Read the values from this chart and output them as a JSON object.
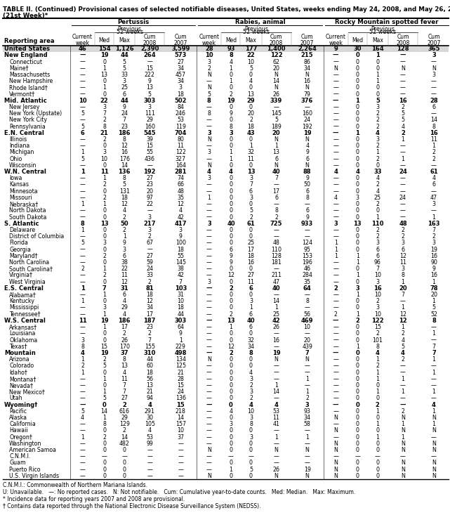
{
  "title_line1": "TABLE II. (Continued) Provisional cases of selected notifiable diseases, United States, weeks ending May 24, 2008, and May 26, 2007",
  "title_line2": "(21st Week)*",
  "rows": [
    [
      "United States",
      "46",
      "154",
      "1,126",
      "2,390",
      "3,599",
      "28",
      "93",
      "177",
      "1,400",
      "2,264",
      "9",
      "30",
      "164",
      "128",
      "365"
    ],
    [
      "New England",
      "—",
      "19",
      "44",
      "264",
      "573",
      "10",
      "8",
      "22",
      "122",
      "215",
      "—",
      "0",
      "1",
      "—",
      "3"
    ],
    [
      "Connecticut",
      "—",
      "0",
      "5",
      "—",
      "27",
      "3",
      "4",
      "10",
      "62",
      "86",
      "—",
      "0",
      "0",
      "—",
      "—"
    ],
    [
      "Maine†",
      "—",
      "1",
      "5",
      "15",
      "34",
      "2",
      "1",
      "5",
      "20",
      "34",
      "N",
      "0",
      "0",
      "N",
      "N"
    ],
    [
      "Massachusetts",
      "—",
      "13",
      "33",
      "222",
      "457",
      "N",
      "0",
      "0",
      "N",
      "N",
      "—",
      "0",
      "1",
      "—",
      "3"
    ],
    [
      "New Hampshire",
      "—",
      "0",
      "3",
      "9",
      "34",
      "—",
      "1",
      "4",
      "14",
      "16",
      "—",
      "0",
      "1",
      "—",
      "—"
    ],
    [
      "Rhode Island†",
      "—",
      "1",
      "25",
      "13",
      "3",
      "N",
      "0",
      "0",
      "N",
      "N",
      "—",
      "0",
      "0",
      "—",
      "—"
    ],
    [
      "Vermont†",
      "—",
      "0",
      "6",
      "5",
      "18",
      "5",
      "2",
      "13",
      "26",
      "79",
      "—",
      "0",
      "0",
      "—",
      "—"
    ],
    [
      "Mid. Atlantic",
      "10",
      "22",
      "44",
      "303",
      "502",
      "8",
      "19",
      "29",
      "339",
      "376",
      "—",
      "1",
      "5",
      "16",
      "28"
    ],
    [
      "New Jersey",
      "—",
      "3",
      "9",
      "3",
      "84",
      "—",
      "0",
      "0",
      "—",
      "—",
      "—",
      "0",
      "3",
      "2",
      "6"
    ],
    [
      "New York (Upstate)",
      "5",
      "7",
      "24",
      "111",
      "246",
      "8",
      "9",
      "20",
      "145",
      "160",
      "—",
      "0",
      "2",
      "5",
      "—"
    ],
    [
      "New York City",
      "—",
      "2",
      "7",
      "29",
      "53",
      "—",
      "0",
      "2",
      "5",
      "24",
      "—",
      "0",
      "2",
      "5",
      "14"
    ],
    [
      "Pennsylvania",
      "5",
      "8",
      "23",
      "160",
      "119",
      "—",
      "8",
      "18",
      "189",
      "192",
      "—",
      "0",
      "2",
      "4",
      "8"
    ],
    [
      "E.N. Central",
      "6",
      "21",
      "186",
      "545",
      "704",
      "3",
      "3",
      "43",
      "20",
      "19",
      "—",
      "1",
      "4",
      "2",
      "16"
    ],
    [
      "Illinois",
      "—",
      "2",
      "8",
      "39",
      "80",
      "N",
      "0",
      "0",
      "N",
      "N",
      "—",
      "0",
      "3",
      "1",
      "11"
    ],
    [
      "Indiana",
      "—",
      "0",
      "12",
      "15",
      "11",
      "—",
      "0",
      "1",
      "1",
      "4",
      "—",
      "0",
      "2",
      "—",
      "1"
    ],
    [
      "Michigan",
      "1",
      "3",
      "16",
      "55",
      "122",
      "3",
      "1",
      "32",
      "13",
      "9",
      "—",
      "0",
      "1",
      "—",
      "2"
    ],
    [
      "Ohio",
      "5",
      "10",
      "176",
      "436",
      "327",
      "—",
      "1",
      "11",
      "6",
      "6",
      "—",
      "0",
      "2",
      "1",
      "2"
    ],
    [
      "Wisconsin",
      "—",
      "0",
      "14",
      "—",
      "164",
      "N",
      "0",
      "0",
      "N",
      "N",
      "—",
      "0",
      "0",
      "—",
      "—"
    ],
    [
      "W.N. Central",
      "1",
      "11",
      "136",
      "192",
      "281",
      "4",
      "4",
      "13",
      "40",
      "88",
      "4",
      "4",
      "33",
      "24",
      "61"
    ],
    [
      "Iowa",
      "—",
      "1",
      "8",
      "27",
      "74",
      "3",
      "0",
      "3",
      "7",
      "9",
      "—",
      "0",
      "4",
      "—",
      "4"
    ],
    [
      "Kansas",
      "—",
      "2",
      "5",
      "23",
      "66",
      "—",
      "0",
      "7",
      "—",
      "50",
      "—",
      "0",
      "2",
      "—",
      "6"
    ],
    [
      "Minnesota",
      "—",
      "0",
      "131",
      "20",
      "48",
      "—",
      "0",
      "6",
      "17",
      "6",
      "—",
      "0",
      "4",
      "—",
      "—"
    ],
    [
      "Missouri",
      "—",
      "2",
      "18",
      "97",
      "35",
      "1",
      "0",
      "3",
      "6",
      "8",
      "4",
      "3",
      "25",
      "24",
      "47"
    ],
    [
      "Nebraska†",
      "1",
      "1",
      "12",
      "22",
      "12",
      "—",
      "0",
      "0",
      "—",
      "—",
      "—",
      "0",
      "2",
      "—",
      "3"
    ],
    [
      "North Dakota",
      "—",
      "0",
      "4",
      "—",
      "4",
      "—",
      "0",
      "5",
      "8",
      "6",
      "—",
      "0",
      "0",
      "—",
      "—"
    ],
    [
      "South Dakota",
      "—",
      "0",
      "2",
      "3",
      "42",
      "—",
      "0",
      "2",
      "2",
      "9",
      "—",
      "0",
      "1",
      "—",
      "1"
    ],
    [
      "S. Atlantic",
      "8",
      "13",
      "50",
      "217",
      "417",
      "3",
      "40",
      "61",
      "725",
      "933",
      "3",
      "13",
      "110",
      "48",
      "163"
    ],
    [
      "Delaware",
      "1",
      "0",
      "2",
      "3",
      "3",
      "—",
      "0",
      "0",
      "—",
      "—",
      "—",
      "0",
      "2",
      "2",
      "7"
    ],
    [
      "District of Columbia",
      "—",
      "0",
      "1",
      "2",
      "9",
      "—",
      "0",
      "0",
      "—",
      "—",
      "—",
      "0",
      "2",
      "2",
      "2"
    ],
    [
      "Florida",
      "5",
      "3",
      "9",
      "67",
      "100",
      "—",
      "0",
      "25",
      "48",
      "124",
      "1",
      "0",
      "3",
      "3",
      "3"
    ],
    [
      "Georgia",
      "—",
      "0",
      "3",
      "—",
      "18",
      "—",
      "6",
      "17",
      "110",
      "95",
      "1",
      "0",
      "6",
      "6",
      "19"
    ],
    [
      "Maryland†",
      "—",
      "2",
      "6",
      "27",
      "55",
      "—",
      "9",
      "18",
      "128",
      "153",
      "1",
      "1",
      "6",
      "12",
      "16"
    ],
    [
      "North Carolina",
      "—",
      "0",
      "38",
      "59",
      "145",
      "—",
      "9",
      "16",
      "181",
      "196",
      "—",
      "1",
      "96",
      "11",
      "90"
    ],
    [
      "South Carolina†",
      "2",
      "1",
      "22",
      "24",
      "38",
      "—",
      "0",
      "0",
      "—",
      "46",
      "—",
      "0",
      "7",
      "3",
      "9"
    ],
    [
      "Virginia†",
      "—",
      "2",
      "11",
      "33",
      "42",
      "—",
      "12",
      "27",
      "211",
      "284",
      "—",
      "1",
      "10",
      "8",
      "16"
    ],
    [
      "West Virginia",
      "—",
      "0",
      "12",
      "2",
      "7",
      "3",
      "0",
      "11",
      "47",
      "35",
      "—",
      "0",
      "3",
      "1",
      "1"
    ],
    [
      "E.S. Central",
      "1",
      "7",
      "31",
      "81",
      "103",
      "—",
      "2",
      "6",
      "40",
      "64",
      "2",
      "3",
      "16",
      "20",
      "78"
    ],
    [
      "Alabama†",
      "—",
      "1",
      "6",
      "18",
      "31",
      "—",
      "0",
      "0",
      "—",
      "—",
      "—",
      "1",
      "10",
      "7",
      "20"
    ],
    [
      "Kentucky",
      "1",
      "0",
      "4",
      "12",
      "10",
      "—",
      "0",
      "3",
      "14",
      "8",
      "—",
      "0",
      "2",
      "—",
      "1"
    ],
    [
      "Mississippi",
      "—",
      "3",
      "29",
      "34",
      "18",
      "—",
      "0",
      "1",
      "1",
      "—",
      "—",
      "0",
      "3",
      "1",
      "5"
    ],
    [
      "Tennessee†",
      "—",
      "1",
      "4",
      "17",
      "44",
      "—",
      "2",
      "6",
      "25",
      "56",
      "2",
      "1",
      "10",
      "12",
      "52"
    ],
    [
      "W.S. Central",
      "11",
      "19",
      "186",
      "187",
      "303",
      "—",
      "13",
      "40",
      "42",
      "469",
      "—",
      "2",
      "122",
      "12",
      "8"
    ],
    [
      "Arkansas†",
      "—",
      "1",
      "17",
      "23",
      "64",
      "—",
      "1",
      "6",
      "26",
      "10",
      "—",
      "0",
      "15",
      "1",
      "—"
    ],
    [
      "Louisiana",
      "—",
      "0",
      "2",
      "2",
      "9",
      "—",
      "0",
      "0",
      "—",
      "—",
      "—",
      "0",
      "2",
      "2",
      "1"
    ],
    [
      "Oklahoma",
      "3",
      "0",
      "26",
      "7",
      "1",
      "—",
      "0",
      "32",
      "16",
      "20",
      "—",
      "0",
      "101",
      "4",
      "—"
    ],
    [
      "Texas†",
      "8",
      "15",
      "170",
      "155",
      "229",
      "—",
      "12",
      "34",
      "—",
      "439",
      "—",
      "1",
      "8",
      "5",
      "7"
    ],
    [
      "Mountain",
      "4",
      "19",
      "37",
      "310",
      "498",
      "—",
      "2",
      "8",
      "19",
      "7",
      "—",
      "0",
      "4",
      "4",
      "7"
    ],
    [
      "Arizona",
      "1",
      "2",
      "8",
      "44",
      "134",
      "N",
      "0",
      "0",
      "N",
      "N",
      "—",
      "0",
      "1",
      "2",
      "1"
    ],
    [
      "Colorado",
      "2",
      "5",
      "13",
      "60",
      "125",
      "—",
      "0",
      "0",
      "—",
      "—",
      "—",
      "0",
      "2",
      "—",
      "—"
    ],
    [
      "Idaho†",
      "1",
      "0",
      "4",
      "18",
      "21",
      "—",
      "0",
      "4",
      "—",
      "—",
      "—",
      "0",
      "1",
      "—",
      "1"
    ],
    [
      "Montana†",
      "—",
      "1",
      "11",
      "56",
      "28",
      "—",
      "0",
      "3",
      "—",
      "1",
      "—",
      "0",
      "1",
      "1",
      "—"
    ],
    [
      "Nevada†",
      "—",
      "0",
      "7",
      "13",
      "15",
      "—",
      "0",
      "2",
      "1",
      "—",
      "—",
      "0",
      "0",
      "—",
      "—"
    ],
    [
      "New Mexico†",
      "—",
      "1",
      "7",
      "21",
      "24",
      "—",
      "0",
      "3",
      "14",
      "1",
      "—",
      "0",
      "1",
      "1",
      "1"
    ],
    [
      "Utah",
      "—",
      "5",
      "27",
      "94",
      "136",
      "—",
      "0",
      "2",
      "—",
      "2",
      "—",
      "0",
      "0",
      "—",
      "—"
    ],
    [
      "Wyoming†",
      "—",
      "0",
      "2",
      "4",
      "15",
      "—",
      "0",
      "4",
      "4",
      "3",
      "—",
      "0",
      "2",
      "—",
      "4"
    ],
    [
      "Pacific",
      "5",
      "14",
      "616",
      "291",
      "218",
      "—",
      "4",
      "10",
      "53",
      "93",
      "—",
      "0",
      "1",
      "2",
      "1"
    ],
    [
      "Alaska",
      "4",
      "1",
      "29",
      "30",
      "14",
      "—",
      "0",
      "3",
      "11",
      "34",
      "N",
      "0",
      "0",
      "N",
      "N"
    ],
    [
      "California",
      "—",
      "8",
      "129",
      "105",
      "157",
      "—",
      "3",
      "8",
      "41",
      "58",
      "—",
      "0",
      "1",
      "1",
      "1"
    ],
    [
      "Hawaii",
      "—",
      "0",
      "2",
      "4",
      "10",
      "—",
      "0",
      "0",
      "—",
      "—",
      "N",
      "0",
      "0",
      "N",
      "N"
    ],
    [
      "Oregon†",
      "1",
      "2",
      "14",
      "53",
      "37",
      "—",
      "0",
      "3",
      "1",
      "1",
      "—",
      "0",
      "1",
      "1",
      "—"
    ],
    [
      "Washington",
      "—",
      "0",
      "482",
      "99",
      "—",
      "—",
      "0",
      "0",
      "—",
      "—",
      "N",
      "0",
      "0",
      "N",
      "N"
    ],
    [
      "American Samoa",
      "—",
      "0",
      "0",
      "—",
      "—",
      "N",
      "0",
      "0",
      "N",
      "N",
      "N",
      "0",
      "0",
      "N",
      "N"
    ],
    [
      "C.N.M.I.",
      "—",
      "—",
      "—",
      "—",
      "—",
      "—",
      "—",
      "—",
      "—",
      "—",
      "—",
      "—",
      "—",
      "—",
      "—"
    ],
    [
      "Guam",
      "—",
      "0",
      "0",
      "—",
      "—",
      "—",
      "0",
      "0",
      "—",
      "—",
      "N",
      "0",
      "0",
      "N",
      "N"
    ],
    [
      "Puerto Rico",
      "—",
      "0",
      "0",
      "—",
      "—",
      "—",
      "1",
      "5",
      "26",
      "19",
      "N",
      "0",
      "0",
      "N",
      "N"
    ],
    [
      "U.S. Virgin Islands",
      "—",
      "0",
      "0",
      "—",
      "—",
      "N",
      "0",
      "0",
      "N",
      "N",
      "N",
      "0",
      "0",
      "N",
      "N"
    ]
  ],
  "footnotes_line1": "C.N.M.I.: Commonwealth of Northern Mariana Islands.",
  "footnotes_line2": "U: Unavailable.   —: No reported cases.   N: Not notifiable.   Cum: Cumulative year-to-date counts.   Med: Median.   Max: Maximum.",
  "footnotes_line3": "* Incidence data for reporting years 2007 and 2008 are provisional.",
  "footnotes_line4": "† Contains data reported through the National Electronic Disease Surveillance System (NEDSS).",
  "bold_rows": [
    0,
    1,
    8,
    13,
    19,
    27,
    37,
    42,
    47,
    55
  ],
  "section_bold_rows": [
    1,
    8,
    13,
    19,
    27,
    37,
    42,
    47,
    55
  ]
}
